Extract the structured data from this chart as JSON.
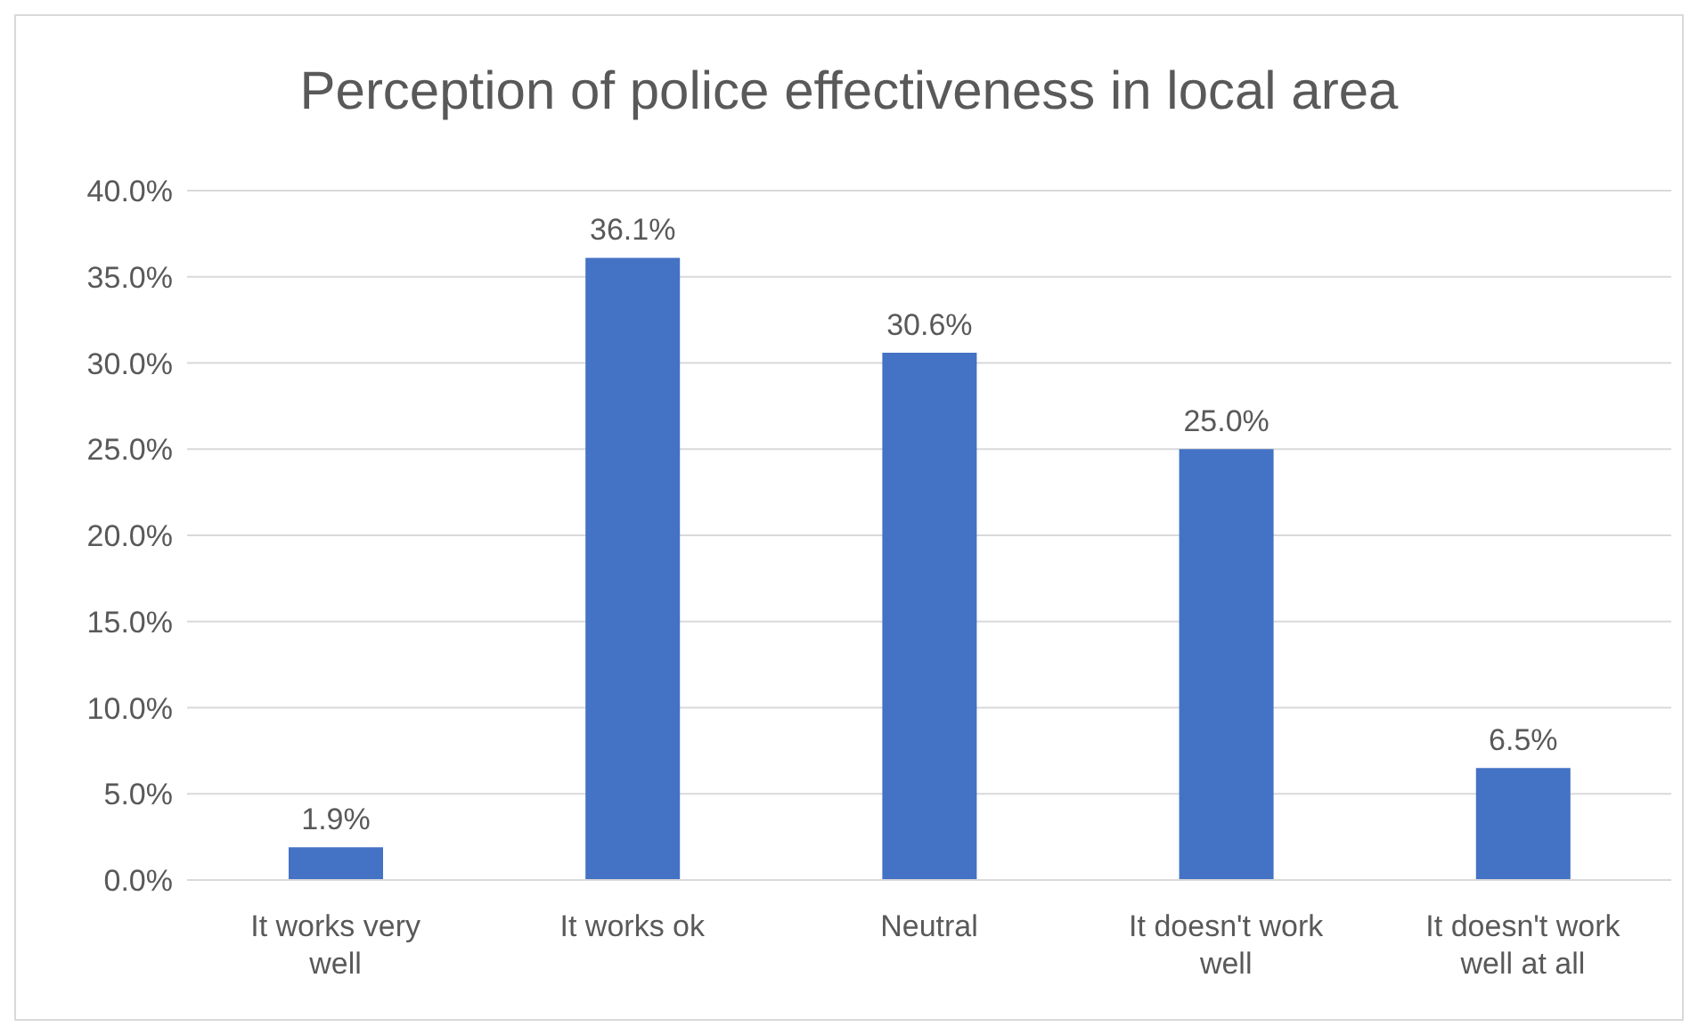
{
  "chart_data": {
    "type": "bar",
    "title": "Perception of police effectiveness in local area",
    "categories": [
      "It works very well",
      "It works ok",
      "Neutral",
      "It doesn't work well",
      "It doesn't work well at all"
    ],
    "values": [
      1.9,
      36.1,
      30.6,
      25.0,
      6.5
    ],
    "value_labels": [
      "1.9%",
      "36.1%",
      "30.6%",
      "25.0%",
      "6.5%"
    ],
    "color": "#4472c4",
    "ylim": [
      0,
      40
    ],
    "yticks": [
      {
        "value": 0,
        "label": "0.0%"
      },
      {
        "value": 5,
        "label": "5.0%"
      },
      {
        "value": 10,
        "label": "10.0%"
      },
      {
        "value": 15,
        "label": "15.0%"
      },
      {
        "value": 20,
        "label": "20.0%"
      },
      {
        "value": 25,
        "label": "25.0%"
      },
      {
        "value": 30,
        "label": "30.0%"
      },
      {
        "value": 35,
        "label": "35.0%"
      },
      {
        "value": 40,
        "label": "40.0%"
      }
    ],
    "grid": "y"
  }
}
